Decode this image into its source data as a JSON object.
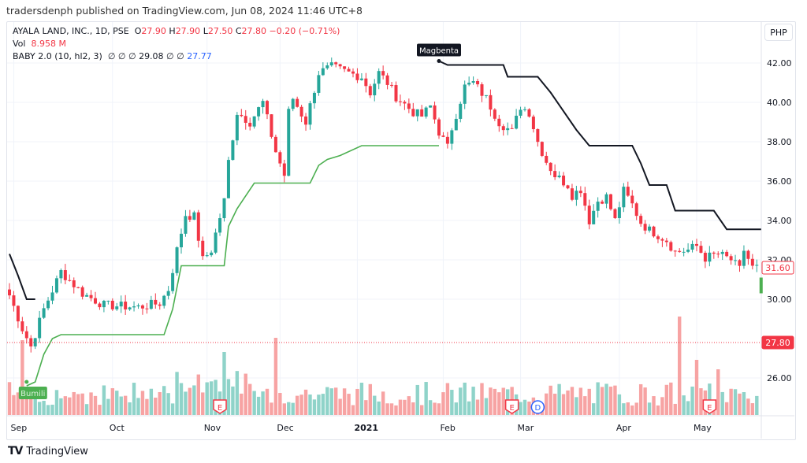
{
  "header": {
    "published": "tradersdenph published on TradingView.com, Jun 08, 2024 11:46 UTC+8"
  },
  "legend": {
    "symbol": "AYALA LAND, INC., 1D, PSE",
    "o_label": "O",
    "o": "27.90",
    "h_label": "H",
    "h": "27.90",
    "l_label": "L",
    "l": "27.50",
    "c_label": "C",
    "c": "27.80",
    "change": "−0.20 (−0.71%)",
    "vol_label": "Vol",
    "vol": "8.958 M",
    "indicator": "BABY 2.0 (10, hl2, 3)",
    "ind_values": "∅ ∅ ∅ 29.08 ∅ ∅",
    "ind_last": "27.77"
  },
  "currency": "PHP",
  "brand": "TradingView",
  "colors": {
    "up": "#26a69a",
    "down": "#f23645",
    "upVol": "#8fd3c9",
    "downVol": "#f7a3a3",
    "green_line": "#4caf50",
    "black_line": "#131722"
  },
  "chart_data": {
    "type": "candlestick",
    "bars": 176,
    "ylim": [
      24.6,
      44.0
    ],
    "y_ticks": [
      "26.00",
      "30.00",
      "32.00",
      "34.00",
      "36.00",
      "38.00",
      "40.00",
      "42.00"
    ],
    "x_labels": [
      {
        "bar": 1,
        "label": "Sep"
      },
      {
        "bar": 24,
        "label": "Oct"
      },
      {
        "bar": 46,
        "label": "Nov"
      },
      {
        "bar": 63,
        "label": "Dec"
      },
      {
        "bar": 81,
        "label": "2021"
      },
      {
        "bar": 101,
        "label": "Feb"
      },
      {
        "bar": 119,
        "label": "Mar"
      },
      {
        "bar": 142,
        "label": "Apr"
      },
      {
        "bar": 160,
        "label": "May"
      }
    ],
    "close_path": [
      [
        0,
        30.2
      ],
      [
        3,
        28.5
      ],
      [
        5,
        27.6
      ],
      [
        8,
        29.5
      ],
      [
        12,
        31.4
      ],
      [
        17,
        30.3
      ],
      [
        22,
        29.7
      ],
      [
        30,
        29.6
      ],
      [
        35,
        29.8
      ],
      [
        37,
        30.5
      ],
      [
        39,
        32.5
      ],
      [
        41,
        34.3
      ],
      [
        43,
        34.2
      ],
      [
        45,
        32
      ],
      [
        47,
        32.5
      ],
      [
        50,
        35
      ],
      [
        51,
        37
      ],
      [
        53,
        39.5
      ],
      [
        56,
        39
      ],
      [
        59,
        40
      ],
      [
        62,
        37.5
      ],
      [
        64,
        36.3
      ],
      [
        65,
        39.5
      ],
      [
        66,
        40.2
      ],
      [
        69,
        39
      ],
      [
        72,
        41.5
      ],
      [
        75,
        41.8
      ],
      [
        79,
        41.5
      ],
      [
        82,
        41.3
      ],
      [
        84,
        40.5
      ],
      [
        86,
        41.5
      ],
      [
        88,
        41
      ],
      [
        90,
        40.3
      ],
      [
        94,
        39.5
      ],
      [
        96,
        39.3
      ],
      [
        98,
        39.8
      ],
      [
        100,
        38.5
      ],
      [
        102,
        37.7
      ],
      [
        103,
        38.7
      ],
      [
        106,
        40.8
      ],
      [
        108,
        41
      ],
      [
        111,
        40.2
      ],
      [
        114,
        39
      ],
      [
        117,
        38.5
      ],
      [
        119,
        39.8
      ],
      [
        121,
        39.5
      ],
      [
        123,
        38
      ],
      [
        125,
        37
      ],
      [
        127,
        36.3
      ],
      [
        130,
        35.8
      ],
      [
        131,
        35.3
      ],
      [
        133,
        35.6
      ],
      [
        135,
        34
      ],
      [
        137,
        35
      ],
      [
        139,
        35.2
      ],
      [
        141,
        34
      ],
      [
        143,
        35.5
      ],
      [
        145,
        34.8
      ],
      [
        147,
        33.9
      ],
      [
        149,
        33.5
      ],
      [
        150,
        33.4
      ],
      [
        153,
        33
      ],
      [
        155,
        32.4
      ],
      [
        158,
        32.5
      ],
      [
        160,
        32.7
      ],
      [
        162,
        32.1
      ],
      [
        165,
        32.3
      ],
      [
        168,
        32
      ],
      [
        170,
        31.5
      ],
      [
        171,
        32.5
      ],
      [
        173,
        31.6
      ],
      [
        174,
        31.6
      ]
    ],
    "last_candle": {
      "open": 30.3,
      "close": 31.1
    },
    "volume_spikes": [
      [
        3,
        95
      ],
      [
        50,
        80
      ],
      [
        62,
        98
      ],
      [
        156,
        125
      ],
      [
        160,
        70
      ],
      [
        165,
        58
      ]
    ],
    "baby_black_line": [
      [
        [
          0,
          32.3
        ],
        [
          2,
          31.2
        ],
        [
          4,
          30.0
        ],
        [
          6,
          30.0
        ]
      ],
      [
        [
          100,
          42.1
        ],
        [
          102,
          41.9
        ],
        [
          115,
          41.9
        ],
        [
          116,
          41.3
        ],
        [
          123,
          41.3
        ],
        [
          126,
          40.5
        ],
        [
          132,
          38.6
        ],
        [
          135,
          37.8
        ],
        [
          145,
          37.8
        ],
        [
          147,
          36.9
        ],
        [
          149,
          35.8
        ],
        [
          153,
          35.8
        ],
        [
          155,
          34.5
        ],
        [
          164,
          34.5
        ],
        [
          167,
          33.55
        ],
        [
          175,
          33.55
        ]
      ]
    ],
    "baby_green_line": [
      [
        4,
        25.6
      ],
      [
        6,
        25.8
      ],
      [
        8,
        27.2
      ],
      [
        10,
        28.0
      ],
      [
        12,
        28.2
      ],
      [
        36,
        28.2
      ],
      [
        38,
        29.5
      ],
      [
        40,
        31.7
      ],
      [
        50,
        31.7
      ],
      [
        51,
        33.7
      ],
      [
        53,
        34.6
      ],
      [
        57,
        35.9
      ],
      [
        70,
        35.9
      ],
      [
        72,
        36.8
      ],
      [
        74,
        37.1
      ],
      [
        77,
        37.3
      ],
      [
        82,
        37.8
      ],
      [
        100,
        37.8
      ]
    ],
    "price_labels": [
      {
        "value": 31.6,
        "text": "31.60",
        "style": "outline"
      },
      {
        "value": 27.8,
        "text": "27.80",
        "style": "filled",
        "dotted_line": true
      }
    ],
    "markers": [
      {
        "bar": 4,
        "price": 25.8,
        "text": "Bumili",
        "type": "buy"
      },
      {
        "bar": 100,
        "price": 42.1,
        "text": "Magbenta",
        "type": "sell"
      }
    ],
    "events": [
      {
        "bar": 49,
        "text": "E"
      },
      {
        "bar": 117,
        "text": "E"
      },
      {
        "bar": 123,
        "text": "D"
      },
      {
        "bar": 163,
        "text": "E"
      }
    ]
  }
}
